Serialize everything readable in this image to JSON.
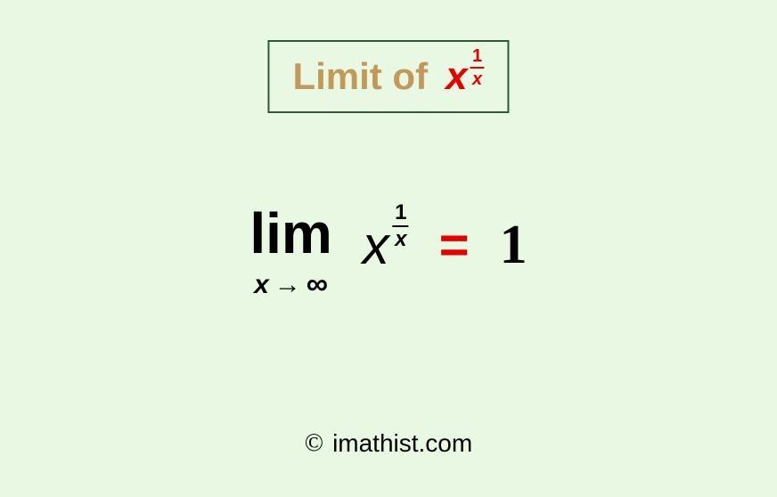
{
  "background_color": "#e8f8e2",
  "title_box": {
    "border_color": "#2a5a3a",
    "title_text": "Limit  of",
    "title_color": "#c19a5b",
    "title_fontsize": 42,
    "expr": {
      "base": "x",
      "numerator": "1",
      "denominator": "x",
      "color": "#e60000",
      "base_fontsize": 44,
      "exp_fontsize": 20
    }
  },
  "equation": {
    "lim_word": "lim",
    "lim_var": "x",
    "lim_arrow": "→",
    "lim_target": "∞",
    "lim_color": "#000000",
    "lim_fontsize": 64,
    "sub_fontsize": 30,
    "expr": {
      "base": "x",
      "numerator": "1",
      "denominator": "x",
      "color": "#000000",
      "base_fontsize": 60,
      "exp_fontsize": 24
    },
    "equals": "=",
    "equals_color": "#e60000",
    "equals_fontsize": 58,
    "result": "1",
    "result_color": "#000000",
    "result_fontsize": 62
  },
  "credit": {
    "symbol": "©",
    "text": "imathist.com",
    "fontsize": 28,
    "color": "#000000"
  }
}
